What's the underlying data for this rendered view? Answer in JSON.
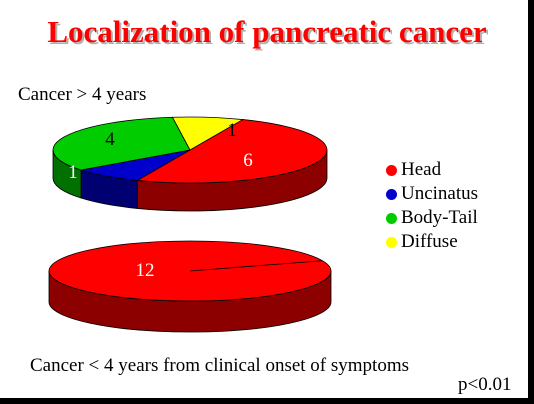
{
  "slide": {
    "title": "Localization of pancreatic cancer",
    "top_chart_label": "Cancer > 4 years",
    "bottom_chart_label": "Cancer < 4 years from clinical onset of symptoms",
    "p_value": "p<0.01"
  },
  "colors": {
    "title": "#ff0000",
    "Head": "#ff0000",
    "Uncinatus": "#0000cc",
    "Body-Tail": "#00cc00",
    "Diffuse": "#ffff00"
  },
  "legend": [
    "Head",
    "Uncinatus",
    "Body-Tail",
    "Diffuse"
  ],
  "chart_data": [
    {
      "type": "pie",
      "style": "3d",
      "title": "Cancer > 4 years",
      "categories": [
        "Head",
        "Uncinatus",
        "Body-Tail",
        "Diffuse"
      ],
      "values": [
        6,
        1,
        4,
        1
      ],
      "data_labels": [
        "6",
        "1",
        "4",
        "1"
      ]
    },
    {
      "type": "pie",
      "style": "3d",
      "title": "Cancer < 4 years from clinical onset of symptoms",
      "categories": [
        "Head",
        "Uncinatus",
        "Body-Tail",
        "Diffuse"
      ],
      "values": [
        12,
        0,
        0,
        0
      ],
      "data_labels": [
        "12"
      ]
    }
  ]
}
